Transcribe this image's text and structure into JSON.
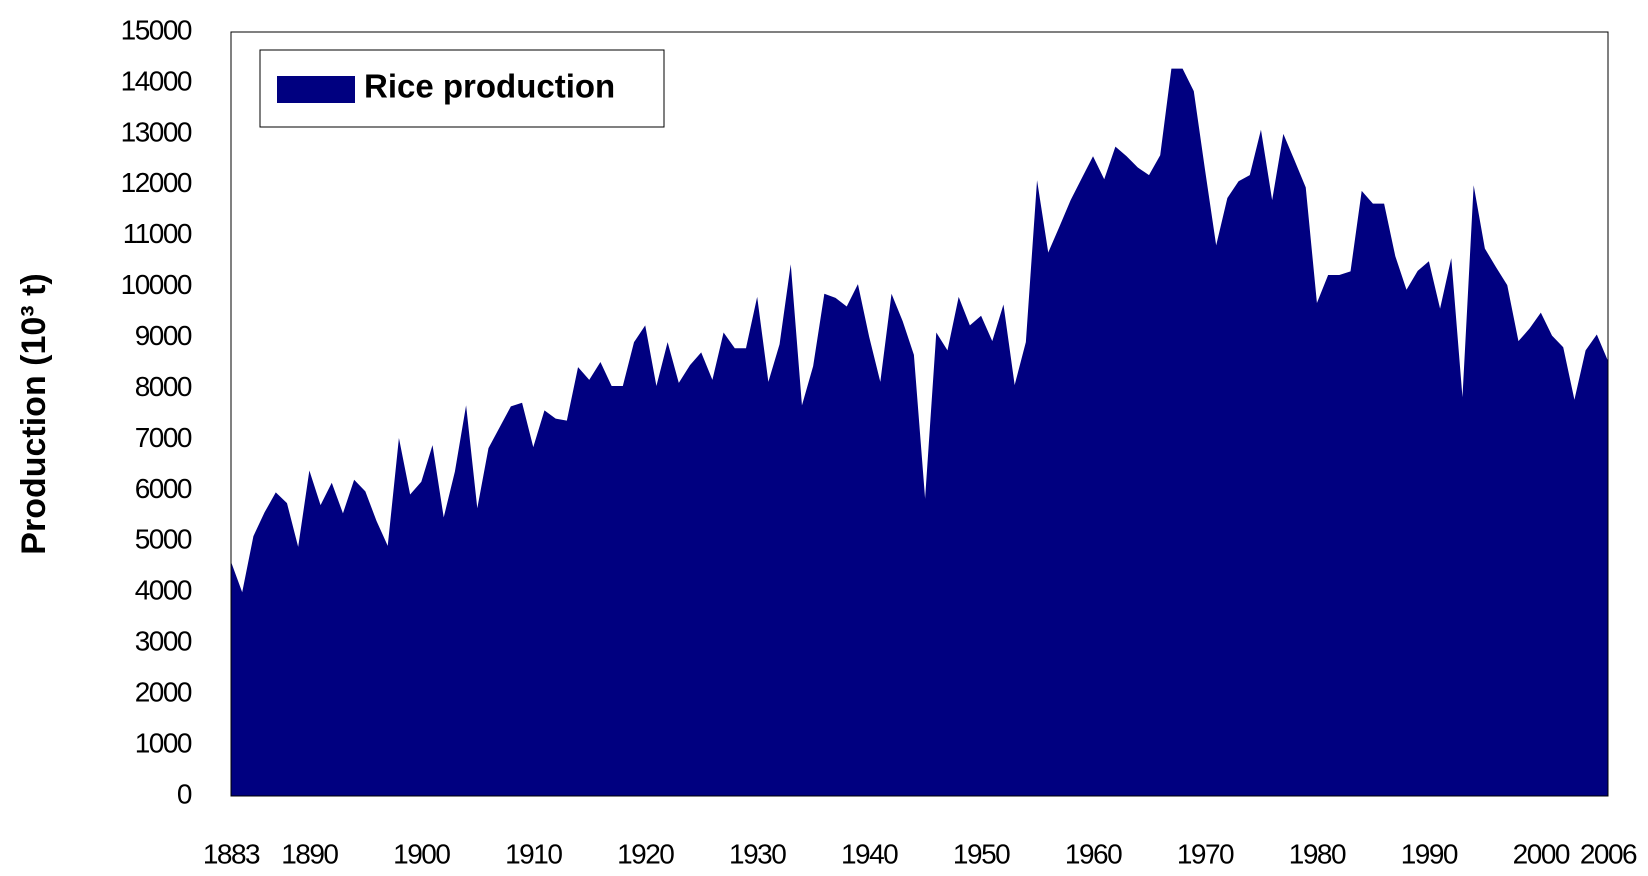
{
  "chart_data": {
    "type": "area",
    "y_label": "Production (10³ t)",
    "x": [
      1883,
      1884,
      1885,
      1886,
      1887,
      1888,
      1889,
      1890,
      1891,
      1892,
      1893,
      1894,
      1895,
      1896,
      1897,
      1898,
      1899,
      1900,
      1901,
      1902,
      1903,
      1904,
      1905,
      1906,
      1907,
      1908,
      1909,
      1910,
      1911,
      1912,
      1913,
      1914,
      1915,
      1916,
      1917,
      1918,
      1919,
      1920,
      1921,
      1922,
      1923,
      1924,
      1925,
      1926,
      1927,
      1928,
      1929,
      1930,
      1931,
      1932,
      1933,
      1934,
      1935,
      1936,
      1937,
      1938,
      1939,
      1940,
      1941,
      1942,
      1943,
      1944,
      1945,
      1946,
      1947,
      1948,
      1949,
      1950,
      1951,
      1952,
      1953,
      1954,
      1955,
      1956,
      1957,
      1958,
      1959,
      1960,
      1961,
      1962,
      1963,
      1964,
      1965,
      1966,
      1967,
      1968,
      1969,
      1970,
      1971,
      1972,
      1973,
      1974,
      1975,
      1976,
      1977,
      1978,
      1979,
      1980,
      1981,
      1982,
      1983,
      1984,
      1985,
      1986,
      1987,
      1988,
      1989,
      1990,
      1991,
      1992,
      1993,
      1994,
      1995,
      1996,
      1997,
      1998,
      1999,
      2000,
      2001,
      2002,
      2003,
      2004,
      2005,
      2006
    ],
    "series": [
      {
        "name": "Rice production",
        "color": "#000080",
        "values": [
          4600,
          4000,
          5100,
          5570,
          5960,
          5750,
          4890,
          6390,
          5710,
          6150,
          5550,
          6210,
          5980,
          5400,
          4910,
          7030,
          5920,
          6170,
          6890,
          5470,
          6370,
          7670,
          5650,
          6830,
          7240,
          7650,
          7720,
          6850,
          7570,
          7410,
          7370,
          8420,
          8170,
          8520,
          8050,
          8050,
          8910,
          9240,
          8050,
          8910,
          8110,
          8460,
          8710,
          8170,
          9100,
          8790,
          8790,
          9800,
          8130,
          8870,
          10440,
          7670,
          8440,
          9860,
          9780,
          9610,
          10050,
          9020,
          8130,
          9860,
          9320,
          8660,
          5840,
          9100,
          8750,
          9800,
          9240,
          9430,
          8930,
          9650,
          8070,
          8910,
          12090,
          10670,
          11180,
          11700,
          12130,
          12560,
          12110,
          12750,
          12560,
          12340,
          12190,
          12580,
          14280,
          14280,
          13840,
          12300,
          10810,
          11740,
          12070,
          12190,
          13080,
          11700,
          13000,
          12480,
          11950,
          9680,
          10230,
          10230,
          10300,
          11880,
          11630,
          11630,
          10600,
          9940,
          10310,
          10500,
          9570,
          10560,
          7830,
          11990,
          10750,
          10380,
          10030,
          8930,
          9180,
          9490,
          9040,
          8810,
          7780,
          8750,
          9060,
          8540
        ]
      }
    ],
    "xlim": [
      1883,
      2006
    ],
    "xticks": [
      1883,
      1890,
      1900,
      1910,
      1920,
      1930,
      1940,
      1950,
      1960,
      1970,
      1980,
      1990,
      2000,
      2006
    ],
    "ylim": [
      0,
      15000
    ],
    "yticks": [
      0,
      1000,
      2000,
      3000,
      4000,
      5000,
      6000,
      7000,
      8000,
      9000,
      10000,
      11000,
      12000,
      13000,
      14000,
      15000
    ],
    "grid": false,
    "legend": "upper left"
  }
}
